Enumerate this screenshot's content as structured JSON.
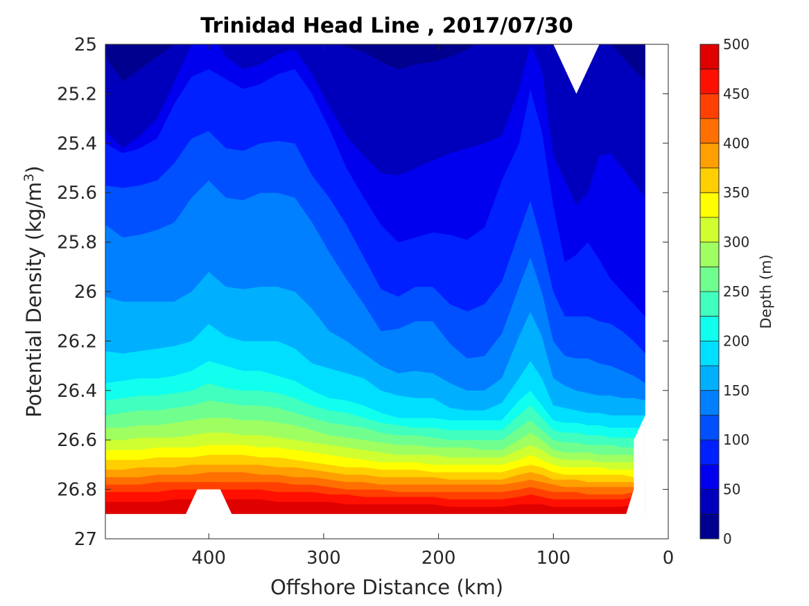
{
  "chart_data": {
    "type": "filled-contour",
    "title": "Trinidad Head Line , 2017/07/30",
    "xlabel": "Offshore Distance (km)",
    "ylabel": "Potential Density (kg/m^3)",
    "ylabel_parts": {
      "main": "Potential Density (kg/m",
      "sup": "3",
      "close": ")"
    },
    "xlim": [
      0,
      490
    ],
    "x_reversed": true,
    "x_ticks": [
      "400",
      "300",
      "200",
      "100",
      "0"
    ],
    "x_tick_values": [
      400,
      300,
      200,
      100,
      0
    ],
    "ylim": [
      25,
      27
    ],
    "y_reversed": true,
    "y_ticks": [
      "25",
      "25.2",
      "25.4",
      "25.6",
      "25.8",
      "26",
      "26.2",
      "26.4",
      "26.6",
      "26.8",
      "27"
    ],
    "y_tick_values": [
      25,
      25.2,
      25.4,
      25.6,
      25.8,
      26,
      26.2,
      26.4,
      26.6,
      26.8,
      27
    ],
    "colorbar": {
      "label": "Depth (m)",
      "min": 0,
      "max": 500,
      "step": 25,
      "ticks": [
        "0",
        "50",
        "100",
        "150",
        "200",
        "250",
        "300",
        "350",
        "400",
        "450",
        "500"
      ],
      "tick_values": [
        0,
        50,
        100,
        150,
        200,
        250,
        300,
        350,
        400,
        450,
        500
      ],
      "colormap": "jet",
      "colors": [
        "#00008f",
        "#0000bc",
        "#0000ef",
        "#0020ff",
        "#0050ff",
        "#0080ff",
        "#00b0ff",
        "#00dfff",
        "#10ffef",
        "#40ffbf",
        "#70ff8f",
        "#9fff60",
        "#cfff30",
        "#ffff00",
        "#ffcf00",
        "#ff9f00",
        "#ff7000",
        "#ff4000",
        "#ff1000",
        "#df0000"
      ]
    },
    "stations_x": [
      490,
      475,
      460,
      445,
      430,
      415,
      400,
      385,
      370,
      355,
      340,
      325,
      310,
      295,
      280,
      265,
      250,
      235,
      220,
      205,
      190,
      175,
      160,
      145,
      130,
      120,
      110,
      100,
      90,
      80,
      70,
      60,
      50,
      40,
      30,
      20
    ],
    "isopycnal_contours": [
      {
        "depth": 25,
        "y": [
          25.05,
          25.15,
          25.1,
          25.05,
          25.0,
          24.95,
          24.9,
          24.92,
          24.96,
          24.98,
          24.95,
          24.9,
          24.95,
          24.99,
          25.01,
          25.03,
          25.07,
          25.1,
          25.08,
          25.07,
          25.05,
          25.02,
          24.98,
          24.97,
          24.92,
          24.9,
          24.94,
          24.98,
          25.0,
          25.0,
          25.0,
          25.0,
          25.0,
          25.05,
          25.1,
          25.15
        ]
      },
      {
        "depth": 50,
        "y": [
          25.35,
          25.42,
          25.37,
          25.3,
          25.15,
          25.0,
          24.93,
          25.05,
          25.1,
          25.08,
          25.04,
          25.02,
          25.12,
          25.25,
          25.37,
          25.45,
          25.52,
          25.53,
          25.5,
          25.47,
          25.44,
          25.42,
          25.4,
          25.37,
          25.18,
          25.0,
          25.1,
          25.45,
          25.55,
          25.65,
          25.6,
          25.45,
          25.44,
          25.5,
          25.56,
          25.62
        ]
      },
      {
        "depth": 75,
        "y": [
          25.4,
          25.44,
          25.42,
          25.38,
          25.24,
          25.13,
          25.1,
          25.14,
          25.18,
          25.16,
          25.12,
          25.1,
          25.2,
          25.34,
          25.5,
          25.62,
          25.73,
          25.8,
          25.78,
          25.76,
          25.77,
          25.79,
          25.74,
          25.55,
          25.4,
          25.18,
          25.35,
          25.65,
          25.88,
          25.85,
          25.8,
          25.87,
          25.95,
          26.0,
          26.05,
          26.1
        ]
      },
      {
        "depth": 100,
        "y": [
          25.57,
          25.58,
          25.57,
          25.55,
          25.48,
          25.38,
          25.35,
          25.42,
          25.43,
          25.4,
          25.39,
          25.4,
          25.53,
          25.62,
          25.73,
          25.86,
          25.99,
          26.02,
          25.98,
          25.98,
          26.05,
          26.08,
          26.05,
          25.96,
          25.76,
          25.63,
          25.8,
          26.0,
          26.1,
          26.1,
          26.1,
          26.12,
          26.13,
          26.16,
          26.2,
          26.25
        ]
      },
      {
        "depth": 125,
        "y": [
          25.73,
          25.78,
          25.77,
          25.75,
          25.72,
          25.62,
          25.55,
          25.62,
          25.63,
          25.6,
          25.6,
          25.62,
          25.72,
          25.84,
          25.95,
          26.05,
          26.16,
          26.15,
          26.12,
          26.12,
          26.21,
          26.27,
          26.26,
          26.17,
          25.98,
          25.86,
          26.0,
          26.2,
          26.26,
          26.27,
          26.27,
          26.29,
          26.3,
          26.32,
          26.34,
          26.37
        ]
      },
      {
        "depth": 150,
        "y": [
          26.02,
          26.04,
          26.04,
          26.04,
          26.04,
          26.0,
          25.92,
          25.98,
          25.99,
          25.98,
          25.98,
          26.0,
          26.07,
          26.16,
          26.2,
          26.25,
          26.3,
          26.33,
          26.32,
          26.33,
          26.37,
          26.4,
          26.4,
          26.35,
          26.18,
          26.08,
          26.18,
          26.35,
          26.38,
          26.4,
          26.41,
          26.42,
          26.42,
          26.43,
          26.43,
          26.44
        ]
      },
      {
        "depth": 175,
        "y": [
          26.24,
          26.25,
          26.24,
          26.23,
          26.22,
          26.2,
          26.13,
          26.18,
          26.2,
          26.2,
          26.2,
          26.23,
          26.29,
          26.31,
          26.33,
          26.35,
          26.4,
          26.42,
          26.43,
          26.43,
          26.47,
          26.48,
          26.48,
          26.45,
          26.35,
          26.28,
          26.35,
          26.46,
          26.47,
          26.48,
          26.49,
          26.49,
          26.5,
          26.5,
          26.5,
          26.5
        ]
      },
      {
        "depth": 200,
        "y": [
          26.37,
          26.36,
          26.35,
          26.35,
          26.34,
          26.32,
          26.28,
          26.3,
          26.32,
          26.32,
          26.34,
          26.36,
          26.4,
          26.43,
          26.44,
          26.46,
          26.49,
          26.51,
          26.51,
          26.51,
          26.52,
          26.52,
          26.52,
          26.52,
          26.44,
          26.4,
          26.46,
          26.52,
          26.53,
          26.53,
          26.54,
          26.54,
          26.55,
          26.55,
          26.55,
          26.55
        ]
      },
      {
        "depth": 225,
        "y": [
          26.44,
          26.43,
          26.42,
          26.42,
          26.41,
          26.4,
          26.37,
          26.39,
          26.4,
          26.4,
          26.41,
          26.43,
          26.46,
          26.48,
          26.49,
          26.51,
          26.53,
          26.54,
          26.55,
          26.55,
          26.56,
          26.56,
          26.56,
          26.56,
          26.5,
          26.46,
          26.51,
          26.56,
          26.57,
          26.57,
          26.58,
          26.58,
          26.59,
          26.59,
          26.59,
          26.59
        ]
      },
      {
        "depth": 250,
        "y": [
          26.5,
          26.49,
          26.48,
          26.48,
          26.47,
          26.46,
          26.44,
          26.45,
          26.46,
          26.46,
          26.47,
          26.49,
          26.51,
          26.53,
          26.54,
          26.55,
          26.57,
          26.58,
          26.58,
          26.59,
          26.6,
          26.6,
          26.6,
          26.6,
          26.55,
          26.52,
          26.56,
          26.6,
          26.61,
          26.61,
          26.62,
          26.62,
          26.62,
          26.63,
          26.63,
          26.63
        ]
      },
      {
        "depth": 275,
        "y": [
          26.55,
          26.55,
          26.54,
          26.54,
          26.53,
          26.52,
          26.51,
          26.51,
          26.52,
          26.52,
          26.53,
          26.54,
          26.56,
          26.58,
          26.59,
          26.6,
          26.61,
          26.62,
          26.62,
          26.63,
          26.63,
          26.63,
          26.64,
          26.64,
          26.6,
          26.57,
          26.6,
          26.64,
          26.65,
          26.65,
          26.65,
          26.66,
          26.66,
          26.66,
          26.66,
          26.66
        ]
      },
      {
        "depth": 300,
        "y": [
          26.6,
          26.6,
          26.59,
          26.59,
          26.59,
          26.58,
          26.57,
          26.57,
          26.58,
          26.58,
          26.59,
          26.6,
          26.61,
          26.62,
          26.63,
          26.64,
          26.65,
          26.66,
          26.66,
          26.66,
          26.67,
          26.67,
          26.67,
          26.67,
          26.64,
          26.62,
          26.64,
          26.67,
          26.68,
          26.68,
          26.68,
          26.69,
          26.69,
          26.69,
          26.69,
          26.69
        ]
      },
      {
        "depth": 325,
        "y": [
          26.64,
          26.64,
          26.64,
          26.63,
          26.63,
          26.63,
          26.62,
          26.62,
          26.62,
          26.63,
          26.63,
          26.64,
          26.65,
          26.66,
          26.67,
          26.68,
          26.69,
          26.69,
          26.69,
          26.7,
          26.7,
          26.7,
          26.7,
          26.7,
          26.68,
          26.66,
          26.68,
          26.7,
          26.71,
          26.71,
          26.71,
          26.71,
          26.72,
          26.72,
          26.72,
          26.72
        ]
      },
      {
        "depth": 350,
        "y": [
          26.68,
          26.68,
          26.68,
          26.67,
          26.67,
          26.67,
          26.66,
          26.66,
          26.66,
          26.67,
          26.67,
          26.68,
          26.69,
          26.7,
          26.71,
          26.71,
          26.72,
          26.72,
          26.72,
          26.73,
          26.73,
          26.73,
          26.73,
          26.73,
          26.71,
          26.7,
          26.71,
          26.73,
          26.74,
          26.74,
          26.74,
          26.74,
          26.74,
          26.74,
          26.75,
          26.75
        ]
      },
      {
        "depth": 375,
        "y": [
          26.72,
          26.72,
          26.71,
          26.71,
          26.71,
          26.7,
          26.7,
          26.7,
          26.7,
          26.7,
          26.71,
          26.71,
          26.72,
          26.73,
          26.74,
          26.74,
          26.75,
          26.75,
          26.75,
          26.75,
          26.76,
          26.76,
          26.76,
          26.76,
          26.74,
          26.73,
          26.74,
          26.76,
          26.76,
          26.76,
          26.77,
          26.77,
          26.77,
          26.77,
          26.77,
          26.77
        ]
      },
      {
        "depth": 400,
        "y": [
          26.75,
          26.75,
          26.75,
          26.74,
          26.74,
          26.74,
          26.73,
          26.73,
          26.73,
          26.74,
          26.74,
          26.75,
          26.75,
          26.76,
          26.77,
          26.77,
          26.78,
          26.78,
          26.78,
          26.78,
          26.78,
          26.78,
          26.78,
          26.78,
          26.77,
          26.76,
          26.77,
          26.78,
          26.79,
          26.79,
          26.79,
          26.79,
          26.79,
          26.79,
          26.79,
          26.79
        ]
      },
      {
        "depth": 425,
        "y": [
          26.78,
          26.78,
          26.78,
          26.77,
          26.77,
          26.77,
          26.77,
          26.77,
          26.77,
          26.77,
          26.77,
          26.78,
          26.78,
          26.79,
          26.8,
          26.8,
          26.8,
          26.81,
          26.81,
          26.81,
          26.81,
          26.81,
          26.81,
          26.81,
          26.8,
          26.79,
          26.8,
          26.81,
          26.81,
          26.81,
          26.82,
          26.82,
          26.82,
          26.82,
          26.81,
          26.81
        ]
      },
      {
        "depth": 450,
        "y": [
          26.81,
          26.81,
          26.81,
          26.81,
          26.8,
          26.8,
          26.8,
          26.8,
          26.8,
          26.8,
          26.81,
          26.81,
          26.81,
          26.82,
          26.82,
          26.83,
          26.83,
          26.83,
          26.83,
          26.83,
          26.84,
          26.84,
          26.84,
          26.84,
          26.83,
          26.82,
          26.83,
          26.84,
          26.84,
          26.84,
          26.84,
          26.84,
          26.84,
          26.84,
          26.83,
          26.83
        ]
      },
      {
        "depth": 475,
        "y": [
          26.85,
          26.85,
          26.85,
          26.85,
          26.84,
          26.84,
          26.84,
          26.84,
          26.84,
          26.84,
          26.85,
          26.85,
          26.85,
          26.85,
          26.86,
          26.86,
          26.86,
          26.86,
          26.86,
          26.86,
          26.87,
          26.87,
          26.87,
          26.87,
          26.86,
          26.86,
          26.86,
          26.87,
          26.87,
          26.87,
          26.87,
          26.87,
          26.87,
          26.87,
          26.86,
          26.85
        ]
      }
    ],
    "data_bottom_density": 26.9,
    "data_extent_km": [
      20,
      490
    ]
  }
}
